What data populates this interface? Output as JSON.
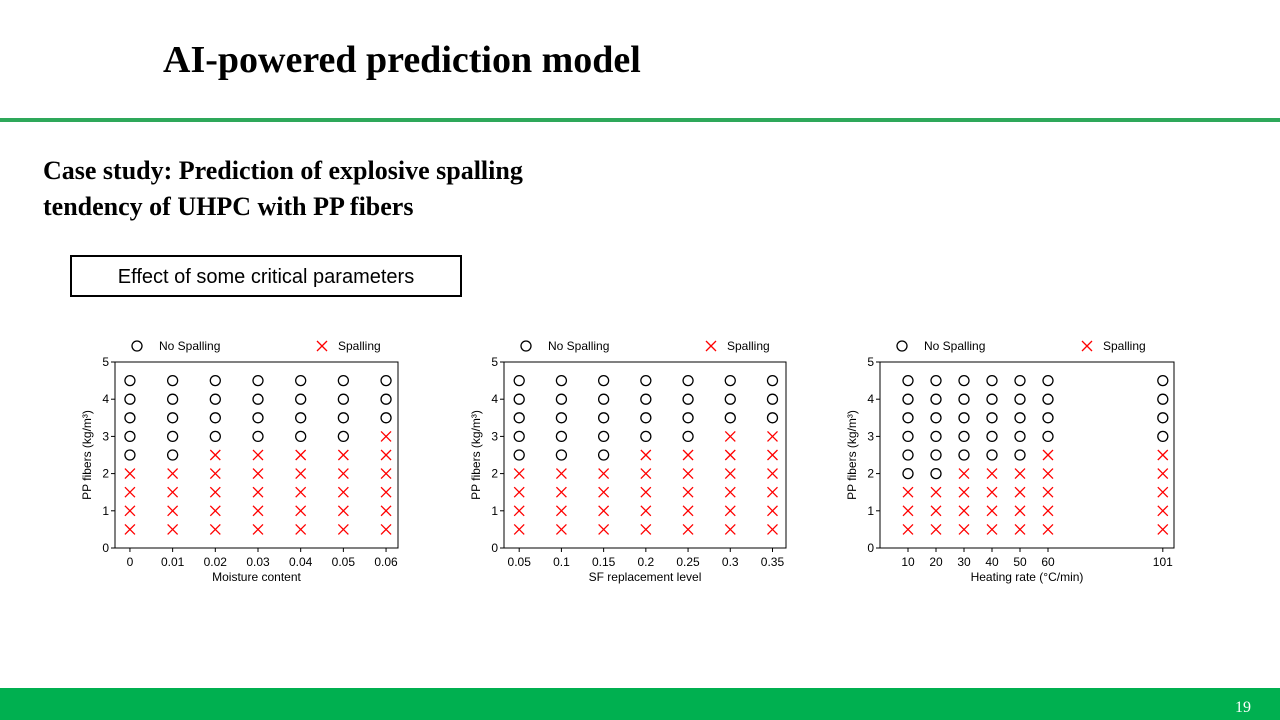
{
  "title": "AI-powered prediction model",
  "subtitle": [
    "Case study: Prediction of explosive spalling",
    "tendency of UHPC with PP fibers"
  ],
  "box_label": "Effect of some critical parameters",
  "page_number": "19",
  "chart_data": [
    {
      "type": "scatter",
      "xlabel": "Moisture content",
      "ylabel": "PP fibers (kg/m³)",
      "xlim": [
        -0.0035,
        0.0628
      ],
      "xticks": [
        0,
        0.01,
        0.02,
        0.03,
        0.04,
        0.05,
        0.06
      ],
      "ylim": [
        0,
        5
      ],
      "yticks": [
        0,
        1,
        2,
        3,
        4,
        5
      ],
      "series": [
        {
          "name": "No Spalling",
          "color": "#000000",
          "marker": "circle",
          "x": [
            0,
            0,
            0,
            0,
            0,
            0.01,
            0.01,
            0.01,
            0.01,
            0.01,
            0.02,
            0.02,
            0.02,
            0.02,
            0.03,
            0.03,
            0.03,
            0.03,
            0.04,
            0.04,
            0.04,
            0.04,
            0.05,
            0.05,
            0.05,
            0.05,
            0.06,
            0.06,
            0.06
          ],
          "values": [
            2.5,
            3,
            3.5,
            4,
            4.5,
            2.5,
            3,
            3.5,
            4,
            4.5,
            3,
            3.5,
            4,
            4.5,
            3,
            3.5,
            4,
            4.5,
            3,
            3.5,
            4,
            4.5,
            3,
            3.5,
            4,
            4.5,
            3.5,
            4,
            4.5
          ]
        },
        {
          "name": "Spalling",
          "color": "#ff0000",
          "marker": "cross",
          "x": [
            0,
            0,
            0,
            0,
            0.01,
            0.01,
            0.01,
            0.01,
            0.02,
            0.02,
            0.02,
            0.02,
            0.02,
            0.03,
            0.03,
            0.03,
            0.03,
            0.03,
            0.04,
            0.04,
            0.04,
            0.04,
            0.04,
            0.05,
            0.05,
            0.05,
            0.05,
            0.05,
            0.06,
            0.06,
            0.06,
            0.06,
            0.06,
            0.06
          ],
          "values": [
            0.5,
            1,
            1.5,
            2,
            0.5,
            1,
            1.5,
            2,
            0.5,
            1,
            1.5,
            2,
            2.5,
            0.5,
            1,
            1.5,
            2,
            2.5,
            0.5,
            1,
            1.5,
            2,
            2.5,
            0.5,
            1,
            1.5,
            2,
            2.5,
            0.5,
            1,
            1.5,
            2,
            2.5,
            3
          ]
        }
      ]
    },
    {
      "type": "scatter",
      "xlabel": "SF replacement level",
      "ylabel": "PP fibers (kg/m³)",
      "xlim": [
        0.032,
        0.366
      ],
      "xticks": [
        0.05,
        0.1,
        0.15,
        0.2,
        0.25,
        0.3,
        0.35
      ],
      "ylim": [
        0,
        5
      ],
      "yticks": [
        0,
        1,
        2,
        3,
        4,
        5
      ],
      "series": [
        {
          "name": "No Spalling",
          "color": "#000000",
          "marker": "circle",
          "x": [
            0.05,
            0.05,
            0.05,
            0.05,
            0.05,
            0.1,
            0.1,
            0.1,
            0.1,
            0.1,
            0.15,
            0.15,
            0.15,
            0.15,
            0.15,
            0.2,
            0.2,
            0.2,
            0.2,
            0.25,
            0.25,
            0.25,
            0.25,
            0.3,
            0.3,
            0.3,
            0.35,
            0.35,
            0.35
          ],
          "values": [
            2.5,
            3,
            3.5,
            4,
            4.5,
            2.5,
            3,
            3.5,
            4,
            4.5,
            2.5,
            3,
            3.5,
            4,
            4.5,
            3,
            3.5,
            4,
            4.5,
            3,
            3.5,
            4,
            4.5,
            3.5,
            4,
            4.5,
            3.5,
            4,
            4.5
          ]
        },
        {
          "name": "Spalling",
          "color": "#ff0000",
          "marker": "cross",
          "x": [
            0.05,
            0.05,
            0.05,
            0.05,
            0.1,
            0.1,
            0.1,
            0.1,
            0.15,
            0.15,
            0.15,
            0.15,
            0.2,
            0.2,
            0.2,
            0.2,
            0.2,
            0.25,
            0.25,
            0.25,
            0.25,
            0.25,
            0.3,
            0.3,
            0.3,
            0.3,
            0.3,
            0.3,
            0.35,
            0.35,
            0.35,
            0.35,
            0.35,
            0.35
          ],
          "values": [
            0.5,
            1,
            1.5,
            2,
            0.5,
            1,
            1.5,
            2,
            0.5,
            1,
            1.5,
            2,
            0.5,
            1,
            1.5,
            2,
            2.5,
            0.5,
            1,
            1.5,
            2,
            2.5,
            0.5,
            1,
            1.5,
            2,
            2.5,
            3,
            0.5,
            1,
            1.5,
            2,
            2.5,
            3
          ]
        }
      ]
    },
    {
      "type": "scatter",
      "xlabel": "Heating rate (°C/min)",
      "ylabel": "PP fibers (kg/m³)",
      "xlim": [
        0,
        105
      ],
      "xticks": [
        10,
        20,
        30,
        40,
        50,
        60,
        101
      ],
      "ylim": [
        0,
        5
      ],
      "yticks": [
        0,
        1,
        2,
        3,
        4,
        5
      ],
      "series": [
        {
          "name": "No Spalling",
          "color": "#000000",
          "marker": "circle",
          "x": [
            10,
            10,
            10,
            10,
            10,
            10,
            20,
            20,
            20,
            20,
            20,
            20,
            30,
            30,
            30,
            30,
            30,
            40,
            40,
            40,
            40,
            40,
            50,
            50,
            50,
            50,
            50,
            60,
            60,
            60,
            60,
            101,
            101,
            101,
            101
          ],
          "values": [
            2,
            2.5,
            3,
            3.5,
            4,
            4.5,
            2,
            2.5,
            3,
            3.5,
            4,
            4.5,
            2.5,
            3,
            3.5,
            4,
            4.5,
            2.5,
            3,
            3.5,
            4,
            4.5,
            2.5,
            3,
            3.5,
            4,
            4.5,
            3,
            3.5,
            4,
            4.5,
            3,
            3.5,
            4,
            4.5
          ]
        },
        {
          "name": "Spalling",
          "color": "#ff0000",
          "marker": "cross",
          "x": [
            10,
            10,
            10,
            20,
            20,
            20,
            30,
            30,
            30,
            30,
            40,
            40,
            40,
            40,
            50,
            50,
            50,
            50,
            60,
            60,
            60,
            60,
            60,
            101,
            101,
            101,
            101,
            101
          ],
          "values": [
            0.5,
            1,
            1.5,
            0.5,
            1,
            1.5,
            0.5,
            1,
            1.5,
            2,
            0.5,
            1,
            1.5,
            2,
            0.5,
            1,
            1.5,
            2,
            0.5,
            1,
            1.5,
            2,
            2.5,
            0.5,
            1,
            1.5,
            2,
            2.5
          ]
        }
      ]
    }
  ]
}
